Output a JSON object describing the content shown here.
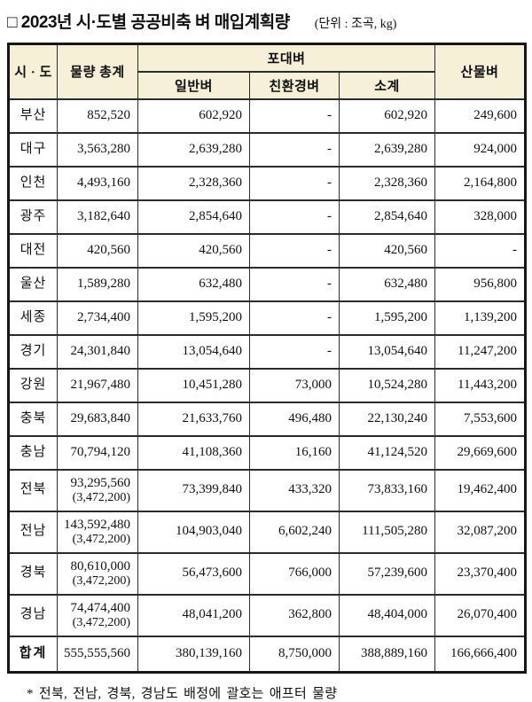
{
  "title": "□ 2023년 시·도별 공공비축 벼 매입계획량",
  "unit_label": "(단위 : 조곡, kg)",
  "table": {
    "header": {
      "sido": "시 · 도",
      "total": "물량 총계",
      "bagged_group": "포대벼",
      "general": "일반벼",
      "eco": "친환경벼",
      "subtotal": "소계",
      "bulk": "산물벼"
    },
    "rows": [
      {
        "region": "부산",
        "total": "852,520",
        "total_note": "",
        "general": "602,920",
        "eco": "-",
        "subtotal": "602,920",
        "bulk": "249,600"
      },
      {
        "region": "대구",
        "total": "3,563,280",
        "total_note": "",
        "general": "2,639,280",
        "eco": "-",
        "subtotal": "2,639,280",
        "bulk": "924,000"
      },
      {
        "region": "인천",
        "total": "4,493,160",
        "total_note": "",
        "general": "2,328,360",
        "eco": "-",
        "subtotal": "2,328,360",
        "bulk": "2,164,800"
      },
      {
        "region": "광주",
        "total": "3,182,640",
        "total_note": "",
        "general": "2,854,640",
        "eco": "-",
        "subtotal": "2,854,640",
        "bulk": "328,000"
      },
      {
        "region": "대전",
        "total": "420,560",
        "total_note": "",
        "general": "420,560",
        "eco": "-",
        "subtotal": "420,560",
        "bulk": "-"
      },
      {
        "region": "울산",
        "total": "1,589,280",
        "total_note": "",
        "general": "632,480",
        "eco": "-",
        "subtotal": "632,480",
        "bulk": "956,800"
      },
      {
        "region": "세종",
        "total": "2,734,400",
        "total_note": "",
        "general": "1,595,200",
        "eco": "-",
        "subtotal": "1,595,200",
        "bulk": "1,139,200"
      },
      {
        "region": "경기",
        "total": "24,301,840",
        "total_note": "",
        "general": "13,054,640",
        "eco": "-",
        "subtotal": "13,054,640",
        "bulk": "11,247,200"
      },
      {
        "region": "강원",
        "total": "21,967,480",
        "total_note": "",
        "general": "10,451,280",
        "eco": "73,000",
        "subtotal": "10,524,280",
        "bulk": "11,443,200"
      },
      {
        "region": "충북",
        "total": "29,683,840",
        "total_note": "",
        "general": "21,633,760",
        "eco": "496,480",
        "subtotal": "22,130,240",
        "bulk": "7,553,600"
      },
      {
        "region": "충남",
        "total": "70,794,120",
        "total_note": "",
        "general": "41,108,360",
        "eco": "16,160",
        "subtotal": "41,124,520",
        "bulk": "29,669,600"
      },
      {
        "region": "전북",
        "total": "93,295,560",
        "total_note": "(3,472,200)",
        "general": "73,399,840",
        "eco": "433,320",
        "subtotal": "73,833,160",
        "bulk": "19,462,400"
      },
      {
        "region": "전남",
        "total": "143,592,480",
        "total_note": "(3,472,200)",
        "general": "104,903,040",
        "eco": "6,602,240",
        "subtotal": "111,505,280",
        "bulk": "32,087,200"
      },
      {
        "region": "경북",
        "total": "80,610,000",
        "total_note": "(3,472,200)",
        "general": "56,473,600",
        "eco": "766,000",
        "subtotal": "57,239,600",
        "bulk": "23,370,400"
      },
      {
        "region": "경남",
        "total": "74,474,400",
        "total_note": "(3,472,200)",
        "general": "48,041,200",
        "eco": "362,800",
        "subtotal": "48,404,000",
        "bulk": "26,070,400"
      },
      {
        "region": "합계",
        "total": "555,555,560",
        "total_note": "",
        "general": "380,139,160",
        "eco": "8,750,000",
        "subtotal": "388,889,160",
        "bulk": "166,666,400",
        "is_total": true
      }
    ]
  },
  "footnote": "* 전북, 전남, 경북, 경남도 배정에 괄호는 애프터 물량",
  "colors": {
    "header_bg": "#f6f0d8",
    "border": "#2b2b2b",
    "text": "#101010"
  }
}
